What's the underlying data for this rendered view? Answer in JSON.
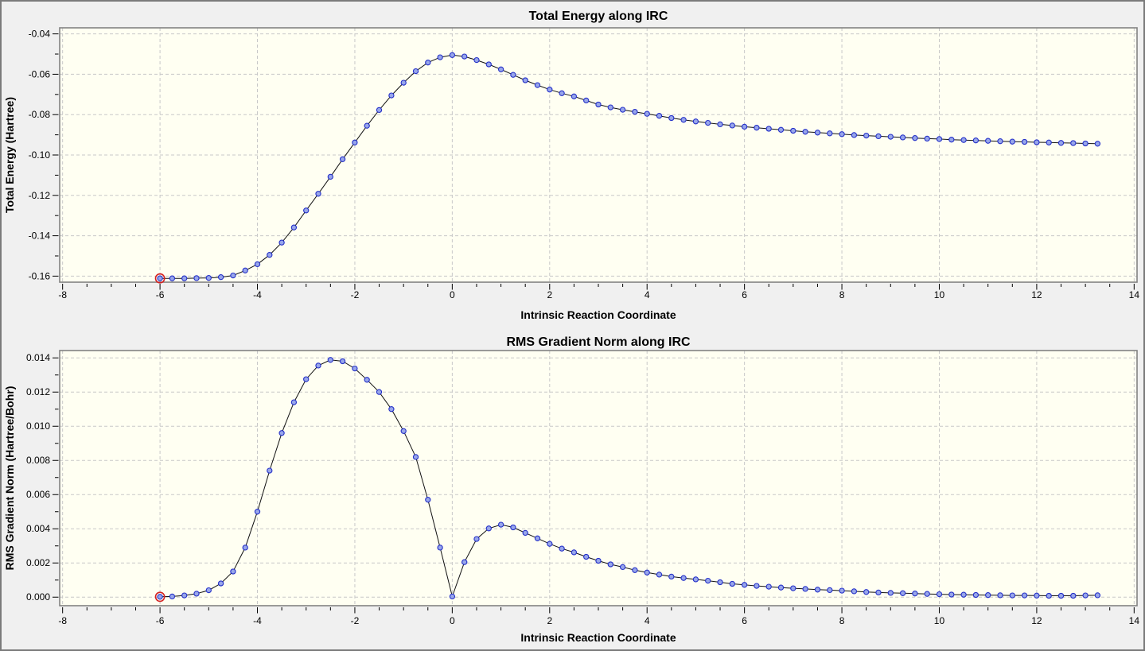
{
  "window": {
    "type": "irc-plot-panel",
    "background": "#F0F0F0",
    "plot_background": "#FFFFF2",
    "border_color": "#7B7B7B"
  },
  "colors": {
    "curve_line": "#111111",
    "marker_fill": "#98A6EA",
    "marker_stroke": "#2430C8",
    "selected_ring": "#D42020",
    "gridline": "#C8C8C8",
    "frame": "#828282",
    "tick": "#000000",
    "text": "#000000"
  },
  "chart_data": [
    {
      "type": "line",
      "title": "Total Energy along IRC",
      "xlabel": "Intrinsic Reaction Coordinate",
      "ylabel": "Total Energy (Hartree)",
      "xlim": [
        -8.06,
        14.06
      ],
      "ylim": [
        -0.163,
        -0.037
      ],
      "grid": true,
      "legend": "none",
      "marker": "circle",
      "x_tick_values": [
        -8,
        -6,
        -4,
        -2,
        0,
        2,
        4,
        6,
        8,
        10,
        12,
        14
      ],
      "x_tick_labels": [
        "-8",
        "-6",
        "-4",
        "-2",
        "0",
        "2",
        "4",
        "6",
        "8",
        "10",
        "12",
        "14"
      ],
      "x_minor_step": 0.5,
      "y_tick_values": [
        -0.04,
        -0.06,
        -0.08,
        -0.1,
        -0.12,
        -0.14,
        -0.16
      ],
      "y_tick_labels": [
        "-0.04",
        "-0.06",
        "-0.08",
        "-0.10",
        "-0.12",
        "-0.14",
        "-0.16"
      ],
      "y_minor_step": 0.01,
      "selected_point_index": 0,
      "x": [
        -6.0,
        -5.75,
        -5.5,
        -5.25,
        -5.0,
        -4.75,
        -4.5,
        -4.25,
        -4.0,
        -3.75,
        -3.5,
        -3.25,
        -3.0,
        -2.75,
        -2.5,
        -2.25,
        -2.0,
        -1.75,
        -1.5,
        -1.25,
        -1.0,
        -0.75,
        -0.5,
        -0.25,
        0.0,
        0.25,
        0.5,
        0.75,
        1.0,
        1.25,
        1.5,
        1.75,
        2.0,
        2.25,
        2.5,
        2.75,
        3.0,
        3.25,
        3.5,
        3.75,
        4.0,
        4.25,
        4.5,
        4.75,
        5.0,
        5.25,
        5.5,
        5.75,
        6.0,
        6.25,
        6.5,
        6.75,
        7.0,
        7.25,
        7.5,
        7.75,
        8.0,
        8.25,
        8.5,
        8.75,
        9.0,
        9.25,
        9.5,
        9.75,
        10.0,
        10.25,
        10.5,
        10.75,
        11.0,
        11.25,
        11.5,
        11.75,
        12.0,
        12.25,
        12.5,
        12.75,
        13.0,
        13.25
      ],
      "y": [
        -0.1611,
        -0.1611,
        -0.1611,
        -0.161,
        -0.1609,
        -0.1605,
        -0.1597,
        -0.1572,
        -0.1541,
        -0.1495,
        -0.1434,
        -0.1359,
        -0.1275,
        -0.1192,
        -0.1108,
        -0.1021,
        -0.0938,
        -0.0855,
        -0.0777,
        -0.0705,
        -0.0642,
        -0.0585,
        -0.0542,
        -0.0516,
        -0.0505,
        -0.0512,
        -0.053,
        -0.0551,
        -0.0576,
        -0.0603,
        -0.063,
        -0.0654,
        -0.0676,
        -0.0694,
        -0.071,
        -0.073,
        -0.075,
        -0.0764,
        -0.0776,
        -0.0786,
        -0.0796,
        -0.0806,
        -0.0817,
        -0.0826,
        -0.0834,
        -0.0841,
        -0.0848,
        -0.0854,
        -0.086,
        -0.0865,
        -0.087,
        -0.0875,
        -0.088,
        -0.0885,
        -0.0889,
        -0.0893,
        -0.0897,
        -0.0901,
        -0.0904,
        -0.0907,
        -0.091,
        -0.0913,
        -0.0916,
        -0.0919,
        -0.0921,
        -0.0924,
        -0.0926,
        -0.0928,
        -0.093,
        -0.0932,
        -0.0934,
        -0.0935,
        -0.0937,
        -0.0938,
        -0.094,
        -0.0941,
        -0.0943,
        -0.0944
      ]
    },
    {
      "type": "line",
      "title": "RMS Gradient Norm along IRC",
      "xlabel": "Intrinsic Reaction Coordinate",
      "ylabel": "RMS Gradient Norm (Hartree/Bohr)",
      "xlim": [
        -8.06,
        14.06
      ],
      "ylim": [
        -0.0005,
        0.01443
      ],
      "grid": true,
      "legend": "none",
      "marker": "circle",
      "x_tick_values": [
        -8,
        -6,
        -4,
        -2,
        0,
        2,
        4,
        6,
        8,
        10,
        12,
        14
      ],
      "x_tick_labels": [
        "-8",
        "-6",
        "-4",
        "-2",
        "0",
        "2",
        "4",
        "6",
        "8",
        "10",
        "12",
        "14"
      ],
      "x_minor_step": 0.5,
      "y_tick_values": [
        0.0,
        0.002,
        0.004,
        0.006,
        0.008,
        0.01,
        0.012,
        0.014
      ],
      "y_tick_labels": [
        "0.000",
        "0.002",
        "0.004",
        "0.006",
        "0.008",
        "0.010",
        "0.012",
        "0.014"
      ],
      "y_minor_step": 0.001,
      "selected_point_index": 0,
      "x": [
        -6.0,
        -5.75,
        -5.5,
        -5.25,
        -5.0,
        -4.75,
        -4.5,
        -4.25,
        -4.0,
        -3.75,
        -3.5,
        -3.25,
        -3.0,
        -2.75,
        -2.5,
        -2.25,
        -2.0,
        -1.75,
        -1.5,
        -1.25,
        -1.0,
        -0.75,
        -0.5,
        -0.25,
        0.0,
        0.25,
        0.5,
        0.75,
        1.0,
        1.25,
        1.5,
        1.75,
        2.0,
        2.25,
        2.5,
        2.75,
        3.0,
        3.25,
        3.5,
        3.75,
        4.0,
        4.25,
        4.5,
        4.75,
        5.0,
        5.25,
        5.5,
        5.75,
        6.0,
        6.25,
        6.5,
        6.75,
        7.0,
        7.25,
        7.5,
        7.75,
        8.0,
        8.25,
        8.5,
        8.75,
        9.0,
        9.25,
        9.5,
        9.75,
        10.0,
        10.25,
        10.5,
        10.75,
        11.0,
        11.25,
        11.5,
        11.75,
        12.0,
        12.25,
        12.5,
        12.75,
        13.0,
        13.25
      ],
      "y": [
        2e-05,
        4e-05,
        0.0001,
        0.0002,
        0.0004,
        0.0008,
        0.0015,
        0.0029,
        0.005,
        0.0074,
        0.0096,
        0.0114,
        0.01275,
        0.01355,
        0.01388,
        0.0138,
        0.01338,
        0.01272,
        0.012,
        0.011,
        0.00972,
        0.0082,
        0.0057,
        0.0029,
        4e-05,
        0.00205,
        0.0034,
        0.00402,
        0.00424,
        0.00408,
        0.00376,
        0.00344,
        0.00312,
        0.00284,
        0.00262,
        0.00236,
        0.00213,
        0.00192,
        0.00176,
        0.00158,
        0.00144,
        0.00132,
        0.0012,
        0.00112,
        0.00104,
        0.00096,
        0.00087,
        0.00078,
        0.00072,
        0.00066,
        0.00061,
        0.00056,
        0.00052,
        0.00048,
        0.00044,
        0.00041,
        0.00038,
        0.00034,
        0.0003,
        0.00027,
        0.00025,
        0.00023,
        0.00021,
        0.00019,
        0.00017,
        0.00015,
        0.00014,
        0.00013,
        0.00012,
        0.00011,
        0.0001,
        0.0001,
        9e-05,
        8e-05,
        8e-05,
        8e-05,
        0.0001,
        0.00011
      ]
    }
  ]
}
